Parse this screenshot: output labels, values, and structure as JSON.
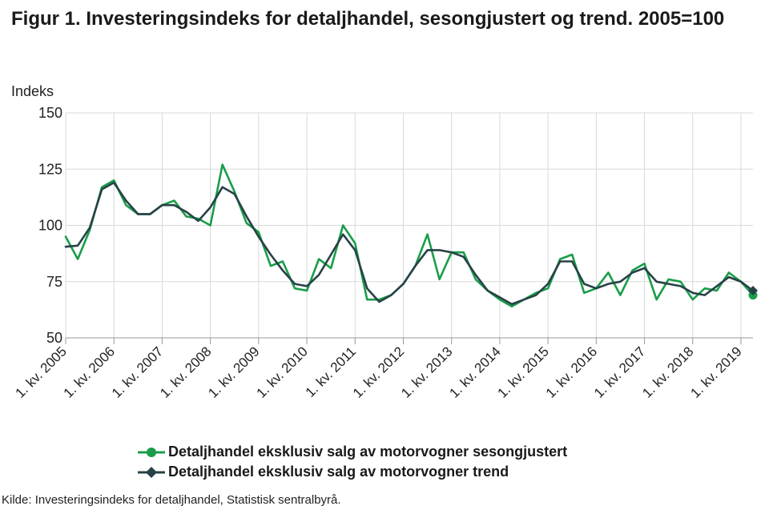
{
  "title": "Figur 1. Investeringsindeks for detaljhandel, sesongjustert og trend. 2005=100",
  "source": "Kilde: Investeringsindeks for detaljhandel, Statistisk sentralbyrå.",
  "colors": {
    "seasonal": "#1a9d49",
    "trend": "#274247",
    "grid": "#d8d8d8",
    "axis": "#999999"
  },
  "chart_data": {
    "type": "line",
    "title": "Figur 1. Investeringsindeks for detaljhandel, sesongjustert og trend. 2005=100",
    "xlabel": "",
    "ylabel": "Indeks",
    "ylim": [
      50,
      150
    ],
    "yticks": [
      50,
      75,
      100,
      125,
      150
    ],
    "grid": true,
    "legend_position": "bottom",
    "x": [
      "1. kv. 2005",
      "2. kv. 2005",
      "3. kv. 2005",
      "4. kv. 2005",
      "1. kv. 2006",
      "2. kv. 2006",
      "3. kv. 2006",
      "4. kv. 2006",
      "1. kv. 2007",
      "2. kv. 2007",
      "3. kv. 2007",
      "4. kv. 2007",
      "1. kv. 2008",
      "2. kv. 2008",
      "3. kv. 2008",
      "4. kv. 2008",
      "1. kv. 2009",
      "2. kv. 2009",
      "3. kv. 2009",
      "4. kv. 2009",
      "1. kv. 2010",
      "2. kv. 2010",
      "3. kv. 2010",
      "4. kv. 2010",
      "1. kv. 2011",
      "2. kv. 2011",
      "3. kv. 2011",
      "4. kv. 2011",
      "1. kv. 2012",
      "2. kv. 2012",
      "3. kv. 2012",
      "4. kv. 2012",
      "1. kv. 2013",
      "2. kv. 2013",
      "3. kv. 2013",
      "4. kv. 2013",
      "1. kv. 2014",
      "2. kv. 2014",
      "3. kv. 2014",
      "4. kv. 2014",
      "1. kv. 2015",
      "2. kv. 2015",
      "3. kv. 2015",
      "4. kv. 2015",
      "1. kv. 2016",
      "2. kv. 2016",
      "3. kv. 2016",
      "4. kv. 2016",
      "1. kv. 2017",
      "2. kv. 2017",
      "3. kv. 2017",
      "4. kv. 2017",
      "1. kv. 2018",
      "2. kv. 2018",
      "3. kv. 2018",
      "4. kv. 2018",
      "1. kv. 2019",
      "2. kv. 2019"
    ],
    "xtick_labels": [
      "1. kv. 2005",
      "1. kv. 2006",
      "1. kv. 2007",
      "1. kv. 2008",
      "1. kv. 2009",
      "1. kv. 2010",
      "1. kv. 2011",
      "1. kv. 2012",
      "1. kv. 2013",
      "1. kv. 2014",
      "1. kv. 2015",
      "1. kv. 2016",
      "1. kv. 2017",
      "1. kv. 2018",
      "1. kv. 2019"
    ],
    "series": [
      {
        "name": "Detaljhandel eksklusiv salg av motorvogner sesongjustert",
        "color": "#1a9d49",
        "marker": "circle",
        "values": [
          95,
          85,
          98,
          117,
          120,
          109,
          105,
          105,
          109,
          111,
          104,
          103,
          100,
          127,
          115,
          101,
          97,
          82,
          84,
          72,
          71,
          85,
          81,
          100,
          92,
          67,
          67,
          69,
          74,
          82,
          96,
          76,
          88,
          88,
          76,
          71,
          67,
          64,
          67,
          70,
          72,
          85,
          87,
          70,
          72,
          79,
          69,
          80,
          83,
          67,
          76,
          75,
          67,
          72,
          71,
          79,
          75,
          69
        ]
      },
      {
        "name": "Detaljhandel eksklusiv salg av motorvogner trend",
        "color": "#274247",
        "marker": "diamond",
        "values": [
          90.5,
          91,
          99,
          116,
          119,
          111,
          105,
          105,
          109,
          109,
          106,
          102,
          108,
          117,
          114,
          104,
          95,
          87,
          80,
          74,
          73,
          78,
          87,
          96,
          89,
          72,
          66,
          69,
          74,
          82,
          89,
          89,
          88,
          86,
          78,
          71,
          68,
          65,
          67,
          69,
          74,
          84,
          84,
          74,
          72,
          74,
          75,
          79,
          81,
          75,
          74,
          73,
          70,
          69,
          73,
          77,
          75,
          71
        ]
      }
    ]
  }
}
